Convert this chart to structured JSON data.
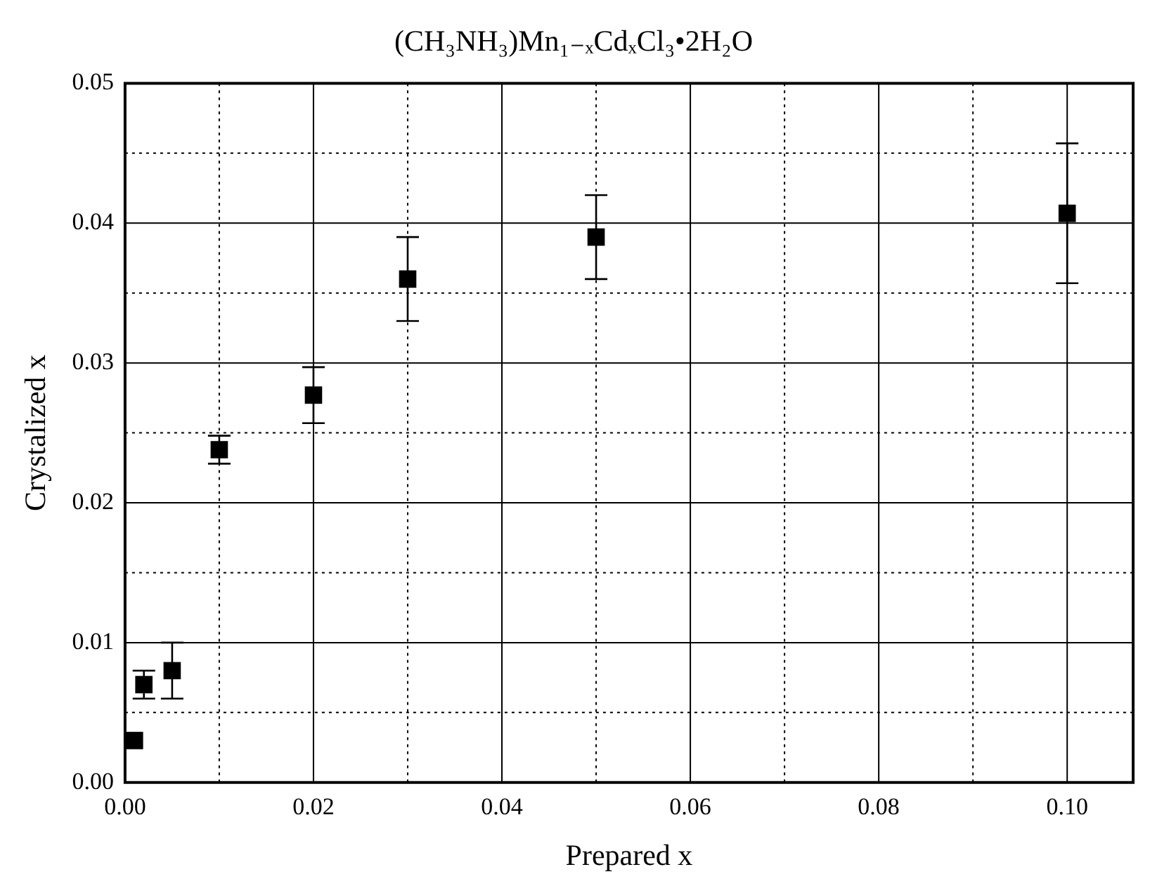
{
  "chart_data": {
    "type": "scatter",
    "title": "(CH₃NH₃)Mn₁₋ₓCdₓCl₃•2H₂O",
    "xlabel": "Prepared x",
    "ylabel": "Crystalized x",
    "x": [
      0.001,
      0.002,
      0.005,
      0.01,
      0.02,
      0.03,
      0.05,
      0.1
    ],
    "series": [
      {
        "color": "#000000",
        "values": [
          0.003,
          0.007,
          0.008,
          0.0238,
          0.0277,
          0.036,
          0.039,
          0.0407
        ],
        "errors": [
          null,
          0.001,
          0.002,
          0.001,
          0.002,
          0.003,
          0.003,
          0.005
        ]
      }
    ],
    "marker": "square",
    "grid": true,
    "legend": false,
    "xlim": [
      0,
      0.107
    ],
    "ylim": [
      0,
      0.05
    ],
    "xticks": [
      {
        "value": 0,
        "label": "0.00"
      },
      {
        "value": 0.01,
        "label": null
      },
      {
        "value": 0.02,
        "label": "0.02"
      },
      {
        "value": 0.03,
        "label": null
      },
      {
        "value": 0.04,
        "label": "0.04"
      },
      {
        "value": 0.05,
        "label": null
      },
      {
        "value": 0.06,
        "label": "0.06"
      },
      {
        "value": 0.07,
        "label": null
      },
      {
        "value": 0.08,
        "label": "0.08"
      },
      {
        "value": 0.09,
        "label": null
      },
      {
        "value": 0.1,
        "label": "0.10"
      }
    ],
    "yticks": [
      {
        "value": 0,
        "label": "0.00"
      },
      {
        "value": 0.005,
        "label": null
      },
      {
        "value": 0.01,
        "label": "0.01"
      },
      {
        "value": 0.015,
        "label": null
      },
      {
        "value": 0.02,
        "label": "0.02"
      },
      {
        "value": 0.025,
        "label": null
      },
      {
        "value": 0.03,
        "label": "0.03"
      },
      {
        "value": 0.035,
        "label": null
      },
      {
        "value": 0.04,
        "label": "0.04"
      },
      {
        "value": 0.045,
        "label": null
      },
      {
        "value": 0.05,
        "label": "0.05"
      }
    ]
  }
}
